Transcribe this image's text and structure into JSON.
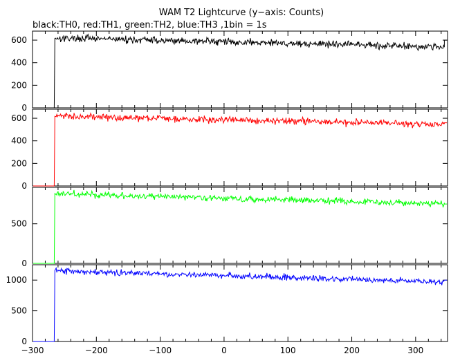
{
  "title": "WAM T2 Lightcurve (y−axis: Counts)",
  "subtitle": "black:TH0, red:TH1, green:TH2, blue:TH3 ,1bin = 1s",
  "chart_data": [
    {
      "type": "line",
      "series_name": "TH0",
      "color": "#000000",
      "x_ticks": [
        -300,
        -200,
        -100,
        0,
        100,
        200,
        300
      ],
      "xlim": [
        -300,
        350
      ],
      "ylim": [
        0,
        680
      ],
      "y_ticks": [
        0,
        200,
        400,
        600
      ],
      "step_time": -265,
      "baseline": 0,
      "level_start": 620,
      "level_end": 540,
      "noise": 22,
      "end_value": 600
    },
    {
      "type": "line",
      "series_name": "TH1",
      "color": "#ff0000",
      "x_ticks": [
        -300,
        -200,
        -100,
        0,
        100,
        200,
        300
      ],
      "xlim": [
        -300,
        350
      ],
      "ylim": [
        0,
        680
      ],
      "y_ticks": [
        0,
        200,
        400,
        600
      ],
      "step_time": -265,
      "baseline": 0,
      "level_start": 620,
      "level_end": 545,
      "noise": 22,
      "end_value": 560
    },
    {
      "type": "line",
      "series_name": "TH2",
      "color": "#00ff00",
      "x_ticks": [
        -300,
        -200,
        -100,
        0,
        100,
        200,
        300
      ],
      "xlim": [
        -300,
        350
      ],
      "ylim": [
        0,
        960
      ],
      "y_ticks": [
        0,
        500
      ],
      "step_time": -265,
      "baseline": 0,
      "level_start": 880,
      "level_end": 750,
      "noise": 28,
      "end_value": 750
    },
    {
      "type": "line",
      "series_name": "TH3",
      "color": "#0000ff",
      "x_ticks": [
        -300,
        -200,
        -100,
        0,
        100,
        200,
        300
      ],
      "xlim": [
        -300,
        350
      ],
      "ylim": [
        0,
        1250
      ],
      "y_ticks": [
        0,
        500,
        1000
      ],
      "step_time": -265,
      "baseline": 0,
      "level_start": 1150,
      "level_end": 970,
      "noise": 35,
      "end_value": 1000
    }
  ]
}
